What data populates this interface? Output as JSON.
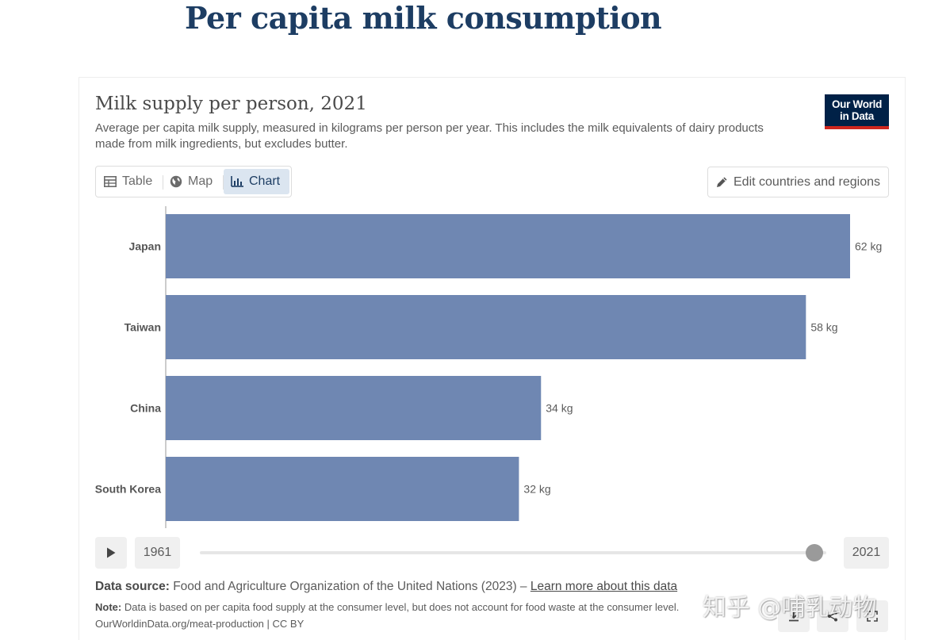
{
  "page": {
    "title": "Per capita milk consumption"
  },
  "header": {
    "chart_title": "Milk supply per person, 2021",
    "subtitle": "Average per capita milk supply, measured in kilograms per person per year. This includes the milk equivalents of dairy products made from milk ingredients, but excludes butter.",
    "logo_line1": "Our World",
    "logo_line2": "in Data"
  },
  "tabs": [
    {
      "label": "Table",
      "icon": "table-icon",
      "active": false
    },
    {
      "label": "Map",
      "icon": "globe-icon",
      "active": false
    },
    {
      "label": "Chart",
      "icon": "chart-icon",
      "active": true
    }
  ],
  "controls": {
    "edit_label": "Edit countries and regions"
  },
  "timeline": {
    "start_year": "1961",
    "end_year": "2021",
    "position": 1.0
  },
  "footer": {
    "source_label": "Data source:",
    "source_text": "Food and Agriculture Organization of the United Nations (2023) –",
    "source_link": "Learn more about this data",
    "note_label": "Note:",
    "note_text": "Data is based on per capita food supply at the consumer level, but does not account for food waste at the consumer level.",
    "license": "OurWorldinData.org/meat-production | CC BY"
  },
  "watermark": "知乎 @哺乳动物",
  "colors": {
    "bar": "#6f87b2",
    "title": "#1d3d63",
    "logo_bg": "#002147",
    "logo_accent": "#ce261e"
  },
  "chart_data": {
    "type": "bar",
    "orientation": "horizontal",
    "title": "Milk supply per person, 2021",
    "categories": [
      "Japan",
      "Taiwan",
      "China",
      "South Korea"
    ],
    "values": [
      62,
      58,
      34,
      32
    ],
    "value_labels": [
      "62 kg",
      "58 kg",
      "34 kg",
      "32 kg"
    ],
    "unit": "kg",
    "xlim": [
      0,
      62
    ],
    "grid": false
  }
}
